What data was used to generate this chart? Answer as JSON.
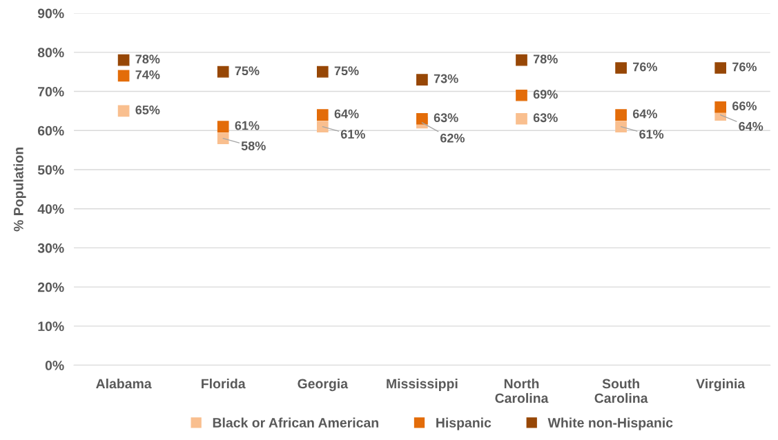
{
  "chart_data": {
    "type": "scatter",
    "ylabel": "% Population",
    "categories": [
      "Alabama",
      "Florida",
      "Georgia",
      "Mississippi",
      "North Carolina",
      "South Carolina",
      "Virginia"
    ],
    "series": [
      {
        "name": "Black or African American",
        "color": "#f9bf8f",
        "values": [
          65,
          58,
          61,
          62,
          63,
          61,
          64
        ],
        "value_labels": [
          "65%",
          "58%",
          "61%",
          "62%",
          "63%",
          "61%",
          "64%"
        ]
      },
      {
        "name": "Hispanic",
        "color": "#e36c09",
        "values": [
          74,
          61,
          64,
          63,
          69,
          64,
          66
        ],
        "value_labels": [
          "74%",
          "61%",
          "64%",
          "63%",
          "69%",
          "64%",
          "66%"
        ]
      },
      {
        "name": "White non-Hispanic",
        "color": "#974706",
        "values": [
          78,
          75,
          75,
          73,
          78,
          76,
          76
        ],
        "value_labels": [
          "78%",
          "75%",
          "75%",
          "73%",
          "78%",
          "76%",
          "76%"
        ]
      }
    ],
    "ylim": [
      0,
      90
    ],
    "yticks": [
      {
        "value": 0,
        "label": "0%"
      },
      {
        "value": 10,
        "label": "10%"
      },
      {
        "value": 20,
        "label": "20%"
      },
      {
        "value": 30,
        "label": "30%"
      },
      {
        "value": 40,
        "label": "40%"
      },
      {
        "value": 50,
        "label": "50%"
      },
      {
        "value": 60,
        "label": "60%"
      },
      {
        "value": 70,
        "label": "70%"
      },
      {
        "value": 80,
        "label": "80%"
      },
      {
        "value": 90,
        "label": "90%"
      }
    ],
    "grid": "y",
    "legend": "bottom",
    "marker": "square"
  }
}
